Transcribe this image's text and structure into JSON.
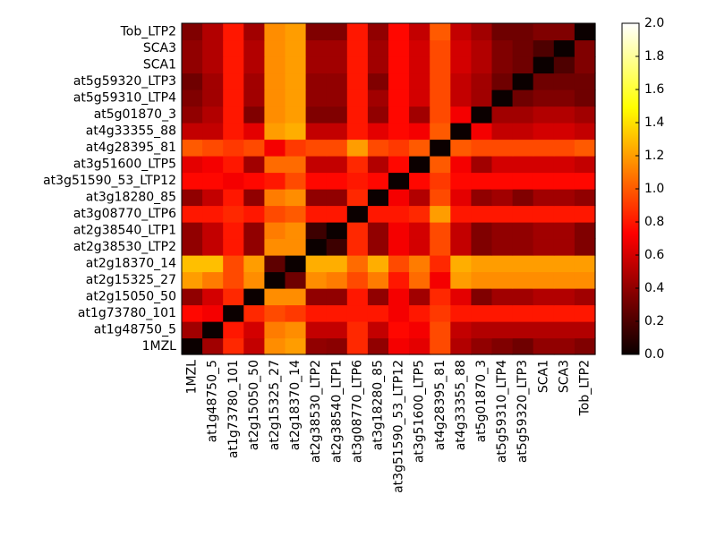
{
  "chart_data": {
    "type": "heatmap",
    "title": "",
    "xlabel": "",
    "ylabel": "",
    "colormap": "hot",
    "colorbar": {
      "range": [
        0.0,
        2.0
      ],
      "ticks": [
        "0.0",
        "0.2",
        "0.4",
        "0.6",
        "0.8",
        "1.0",
        "1.2",
        "1.4",
        "1.6",
        "1.8",
        "2.0"
      ]
    },
    "x_labels": [
      "1MZL",
      "at1g48750_5",
      "at1g73780_101",
      "at2g15050_50",
      "at2g15325_27",
      "at2g18370_14",
      "at2g38530_LTP2",
      "at2g38540_LTP1",
      "at3g08770_LTP6",
      "at3g18280_85",
      "at3g51590_53_LTP12",
      "at3g51600_LTP5",
      "at4g28395_81",
      "at4g33355_88",
      "at5g01870_3",
      "at5g59310_LTP4",
      "at5g59320_LTP3",
      "SCA1",
      "SCA3",
      "Tob_LTP2"
    ],
    "y_labels_bottom_to_top": [
      "1MZL",
      "at1g48750_5",
      "at1g73780_101",
      "at2g15050_50",
      "at2g15325_27",
      "at2g18370_14",
      "at2g38530_LTP2",
      "at2g38540_LTP1",
      "at3g08770_LTP6",
      "at3g18280_85",
      "at3g51590_53_LTP12",
      "at3g51600_LTP5",
      "at4g28395_81",
      "at4g33355_88",
      "at5g01870_3",
      "at5g59310_LTP4",
      "at5g59320_LTP3",
      "SCA1",
      "SCA3",
      "Tob_LTP2"
    ],
    "matrix_rows_bottom_to_top": [
      [
        0.0,
        0.45,
        0.85,
        0.55,
        1.15,
        1.2,
        0.4,
        0.38,
        0.85,
        0.4,
        0.7,
        0.65,
        0.95,
        0.5,
        0.4,
        0.35,
        0.3,
        0.4,
        0.4,
        0.35
      ],
      [
        0.45,
        0.0,
        0.8,
        0.6,
        1.1,
        1.15,
        0.55,
        0.55,
        0.85,
        0.55,
        0.75,
        0.7,
        0.95,
        0.55,
        0.5,
        0.5,
        0.5,
        0.5,
        0.5,
        0.5
      ],
      [
        0.75,
        0.7,
        0.0,
        0.85,
        0.95,
        0.9,
        0.8,
        0.8,
        0.8,
        0.8,
        0.7,
        0.8,
        0.9,
        0.8,
        0.8,
        0.8,
        0.8,
        0.8,
        0.8,
        0.8
      ],
      [
        0.4,
        0.6,
        0.85,
        0.0,
        1.15,
        1.15,
        0.4,
        0.4,
        0.8,
        0.4,
        0.7,
        0.45,
        0.85,
        0.65,
        0.35,
        0.45,
        0.45,
        0.5,
        0.5,
        0.45
      ],
      [
        1.2,
        1.1,
        0.95,
        1.15,
        0.0,
        0.3,
        1.15,
        1.1,
        0.95,
        1.1,
        0.8,
        1.05,
        0.7,
        1.2,
        1.15,
        1.15,
        1.15,
        1.15,
        1.15,
        1.15
      ],
      [
        1.3,
        1.3,
        0.95,
        1.2,
        0.25,
        0.0,
        1.25,
        1.25,
        1.05,
        1.25,
        0.95,
        1.1,
        0.85,
        1.25,
        1.2,
        1.2,
        1.2,
        1.2,
        1.2,
        1.2
      ],
      [
        0.4,
        0.55,
        0.8,
        0.4,
        1.15,
        1.15,
        0.0,
        0.15,
        0.85,
        0.4,
        0.7,
        0.6,
        0.95,
        0.55,
        0.35,
        0.4,
        0.4,
        0.45,
        0.45,
        0.35
      ],
      [
        0.4,
        0.55,
        0.8,
        0.4,
        1.1,
        1.15,
        0.15,
        0.0,
        0.85,
        0.4,
        0.7,
        0.6,
        0.95,
        0.55,
        0.35,
        0.4,
        0.4,
        0.45,
        0.45,
        0.35
      ],
      [
        0.8,
        0.8,
        0.85,
        0.8,
        0.95,
        1.0,
        0.8,
        0.8,
        0.0,
        0.8,
        0.8,
        0.85,
        1.2,
        0.8,
        0.8,
        0.8,
        0.8,
        0.8,
        0.8,
        0.8
      ],
      [
        0.4,
        0.55,
        0.8,
        0.4,
        1.1,
        1.15,
        0.4,
        0.4,
        0.85,
        0.0,
        0.7,
        0.5,
        0.95,
        0.65,
        0.4,
        0.45,
        0.35,
        0.45,
        0.45,
        0.4
      ],
      [
        0.75,
        0.75,
        0.7,
        0.75,
        0.8,
        0.95,
        0.75,
        0.75,
        0.8,
        0.75,
        0.0,
        0.75,
        0.9,
        0.75,
        0.75,
        0.75,
        0.75,
        0.75,
        0.75,
        0.75
      ],
      [
        0.65,
        0.7,
        0.8,
        0.45,
        1.05,
        1.05,
        0.55,
        0.55,
        0.85,
        0.5,
        0.75,
        0.0,
        1.0,
        0.7,
        0.45,
        0.6,
        0.6,
        0.6,
        0.6,
        0.55
      ],
      [
        1.0,
        0.95,
        0.9,
        0.95,
        0.7,
        0.9,
        0.95,
        0.95,
        1.2,
        0.95,
        0.9,
        1.0,
        0.0,
        1.0,
        0.95,
        0.95,
        0.95,
        0.95,
        0.95,
        1.0
      ],
      [
        0.55,
        0.55,
        0.8,
        0.65,
        1.2,
        1.25,
        0.55,
        0.55,
        0.8,
        0.65,
        0.75,
        0.7,
        1.0,
        0.0,
        0.7,
        0.55,
        0.55,
        0.6,
        0.6,
        0.55
      ],
      [
        0.4,
        0.5,
        0.8,
        0.35,
        1.15,
        1.2,
        0.35,
        0.35,
        0.8,
        0.4,
        0.75,
        0.45,
        0.95,
        0.7,
        0.0,
        0.45,
        0.45,
        0.5,
        0.5,
        0.45
      ],
      [
        0.35,
        0.45,
        0.8,
        0.45,
        1.15,
        1.2,
        0.4,
        0.4,
        0.8,
        0.45,
        0.75,
        0.6,
        0.95,
        0.55,
        0.45,
        0.0,
        0.3,
        0.35,
        0.35,
        0.3
      ],
      [
        0.3,
        0.45,
        0.8,
        0.45,
        1.15,
        1.2,
        0.4,
        0.4,
        0.8,
        0.35,
        0.75,
        0.6,
        0.95,
        0.55,
        0.45,
        0.3,
        0.0,
        0.3,
        0.3,
        0.3
      ],
      [
        0.4,
        0.5,
        0.8,
        0.5,
        1.15,
        1.2,
        0.45,
        0.45,
        0.8,
        0.45,
        0.75,
        0.6,
        0.95,
        0.6,
        0.5,
        0.35,
        0.3,
        0.0,
        0.2,
        0.35
      ],
      [
        0.4,
        0.5,
        0.8,
        0.5,
        1.15,
        1.2,
        0.45,
        0.45,
        0.8,
        0.45,
        0.75,
        0.6,
        0.95,
        0.6,
        0.5,
        0.35,
        0.3,
        0.2,
        0.0,
        0.35
      ],
      [
        0.35,
        0.5,
        0.8,
        0.45,
        1.15,
        1.2,
        0.35,
        0.35,
        0.8,
        0.4,
        0.75,
        0.55,
        1.0,
        0.55,
        0.45,
        0.3,
        0.3,
        0.35,
        0.35,
        0.0
      ]
    ]
  }
}
